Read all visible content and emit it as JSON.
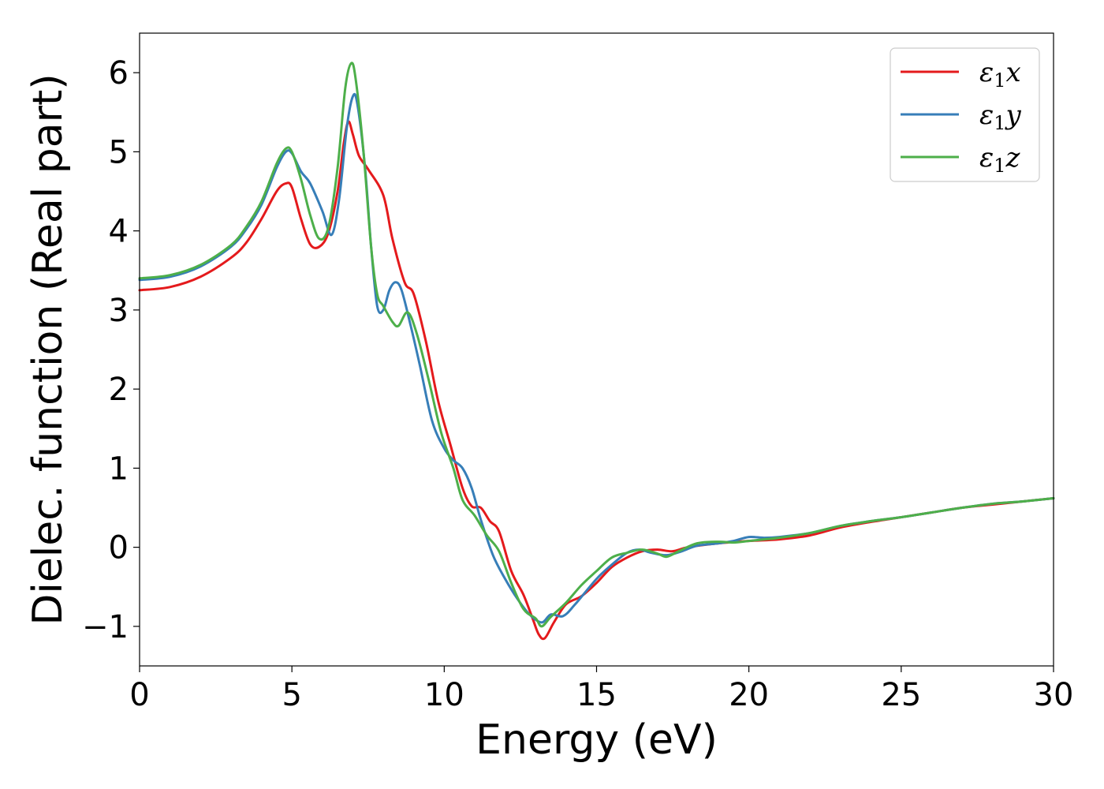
{
  "chart_data": {
    "type": "line",
    "title": "",
    "xlabel": "Energy (eV)",
    "ylabel": "Dielec. function (Real part)",
    "xlim": [
      0,
      30
    ],
    "ylim": [
      -1.5,
      6.5
    ],
    "xticks": [
      0,
      5,
      10,
      15,
      20,
      25,
      30
    ],
    "yticks": [
      -1,
      0,
      1,
      2,
      3,
      4,
      5,
      6
    ],
    "xtick_labels": [
      "0",
      "5",
      "10",
      "15",
      "20",
      "25",
      "30"
    ],
    "ytick_labels": [
      "−1",
      "0",
      "1",
      "2",
      "3",
      "4",
      "5",
      "6"
    ],
    "grid": false,
    "legend_position": "top-right",
    "series": [
      {
        "name_base": "ε",
        "name_sub": "1",
        "name_suffix": "x",
        "color": "#e41a1c",
        "points": [
          [
            0,
            3.25
          ],
          [
            1,
            3.29
          ],
          [
            2,
            3.42
          ],
          [
            3,
            3.66
          ],
          [
            3.5,
            3.85
          ],
          [
            4,
            4.15
          ],
          [
            4.5,
            4.5
          ],
          [
            4.8,
            4.6
          ],
          [
            5.0,
            4.55
          ],
          [
            5.3,
            4.15
          ],
          [
            5.6,
            3.83
          ],
          [
            5.9,
            3.8
          ],
          [
            6.2,
            3.98
          ],
          [
            6.5,
            4.5
          ],
          [
            6.7,
            5.1
          ],
          [
            6.85,
            5.38
          ],
          [
            7.0,
            5.22
          ],
          [
            7.2,
            4.95
          ],
          [
            7.5,
            4.78
          ],
          [
            8.0,
            4.45
          ],
          [
            8.3,
            3.9
          ],
          [
            8.7,
            3.35
          ],
          [
            9.0,
            3.2
          ],
          [
            9.4,
            2.6
          ],
          [
            9.8,
            1.85
          ],
          [
            10.2,
            1.3
          ],
          [
            10.6,
            0.75
          ],
          [
            10.9,
            0.52
          ],
          [
            11.2,
            0.5
          ],
          [
            11.5,
            0.33
          ],
          [
            11.8,
            0.2
          ],
          [
            12.2,
            -0.3
          ],
          [
            12.6,
            -0.6
          ],
          [
            12.9,
            -0.9
          ],
          [
            13.1,
            -1.1
          ],
          [
            13.3,
            -1.15
          ],
          [
            13.6,
            -0.95
          ],
          [
            14.0,
            -0.72
          ],
          [
            14.5,
            -0.62
          ],
          [
            15.0,
            -0.45
          ],
          [
            15.5,
            -0.25
          ],
          [
            16.0,
            -0.13
          ],
          [
            16.5,
            -0.05
          ],
          [
            17.0,
            -0.03
          ],
          [
            17.5,
            -0.05
          ],
          [
            18.0,
            0.0
          ],
          [
            19.0,
            0.05
          ],
          [
            20.0,
            0.08
          ],
          [
            21.0,
            0.1
          ],
          [
            22.0,
            0.15
          ],
          [
            23.0,
            0.25
          ],
          [
            24.0,
            0.32
          ],
          [
            25.0,
            0.38
          ],
          [
            26.0,
            0.44
          ],
          [
            27.0,
            0.5
          ],
          [
            28.0,
            0.54
          ],
          [
            29.0,
            0.58
          ],
          [
            30.0,
            0.62
          ]
        ]
      },
      {
        "name_base": "ε",
        "name_sub": "1",
        "name_suffix": "y",
        "color": "#377eb8",
        "points": [
          [
            0,
            3.38
          ],
          [
            1,
            3.42
          ],
          [
            2,
            3.55
          ],
          [
            3,
            3.8
          ],
          [
            3.5,
            4.02
          ],
          [
            4,
            4.33
          ],
          [
            4.5,
            4.8
          ],
          [
            4.8,
            5.0
          ],
          [
            5.0,
            4.98
          ],
          [
            5.3,
            4.75
          ],
          [
            5.6,
            4.6
          ],
          [
            6.0,
            4.25
          ],
          [
            6.3,
            3.95
          ],
          [
            6.55,
            4.4
          ],
          [
            6.8,
            5.3
          ],
          [
            7.0,
            5.7
          ],
          [
            7.15,
            5.6
          ],
          [
            7.4,
            4.8
          ],
          [
            7.6,
            3.8
          ],
          [
            7.8,
            3.05
          ],
          [
            8.0,
            3.0
          ],
          [
            8.2,
            3.25
          ],
          [
            8.4,
            3.35
          ],
          [
            8.6,
            3.25
          ],
          [
            8.9,
            2.8
          ],
          [
            9.2,
            2.3
          ],
          [
            9.6,
            1.6
          ],
          [
            10.0,
            1.25
          ],
          [
            10.3,
            1.1
          ],
          [
            10.6,
            1.0
          ],
          [
            10.9,
            0.75
          ],
          [
            11.2,
            0.35
          ],
          [
            11.6,
            -0.1
          ],
          [
            12.0,
            -0.4
          ],
          [
            12.4,
            -0.65
          ],
          [
            12.8,
            -0.85
          ],
          [
            13.2,
            -0.95
          ],
          [
            13.5,
            -0.85
          ],
          [
            13.9,
            -0.87
          ],
          [
            14.3,
            -0.72
          ],
          [
            15.0,
            -0.4
          ],
          [
            15.5,
            -0.22
          ],
          [
            16.0,
            -0.07
          ],
          [
            16.4,
            -0.03
          ],
          [
            16.8,
            -0.07
          ],
          [
            17.3,
            -0.1
          ],
          [
            17.8,
            -0.05
          ],
          [
            18.3,
            0.02
          ],
          [
            19.0,
            0.05
          ],
          [
            19.5,
            0.08
          ],
          [
            20.0,
            0.13
          ],
          [
            20.5,
            0.12
          ],
          [
            21.0,
            0.13
          ],
          [
            22.0,
            0.18
          ],
          [
            23.0,
            0.27
          ],
          [
            24.0,
            0.33
          ],
          [
            25.0,
            0.38
          ],
          [
            26.0,
            0.44
          ],
          [
            27.0,
            0.5
          ],
          [
            28.0,
            0.55
          ],
          [
            29.0,
            0.58
          ],
          [
            30.0,
            0.62
          ]
        ]
      },
      {
        "name_base": "ε",
        "name_sub": "1",
        "name_suffix": "z",
        "color": "#4daf4a",
        "points": [
          [
            0,
            3.4
          ],
          [
            1,
            3.44
          ],
          [
            2,
            3.57
          ],
          [
            3,
            3.82
          ],
          [
            3.5,
            4.05
          ],
          [
            4,
            4.37
          ],
          [
            4.5,
            4.85
          ],
          [
            4.8,
            5.04
          ],
          [
            5.0,
            5.0
          ],
          [
            5.3,
            4.65
          ],
          [
            5.6,
            4.2
          ],
          [
            5.9,
            3.9
          ],
          [
            6.2,
            4.05
          ],
          [
            6.5,
            4.8
          ],
          [
            6.75,
            5.8
          ],
          [
            6.95,
            6.12
          ],
          [
            7.1,
            5.9
          ],
          [
            7.35,
            5.0
          ],
          [
            7.6,
            3.8
          ],
          [
            7.8,
            3.2
          ],
          [
            8.0,
            3.05
          ],
          [
            8.3,
            2.85
          ],
          [
            8.5,
            2.8
          ],
          [
            8.8,
            2.97
          ],
          [
            9.1,
            2.7
          ],
          [
            9.5,
            2.1
          ],
          [
            9.9,
            1.45
          ],
          [
            10.3,
            1.0
          ],
          [
            10.6,
            0.6
          ],
          [
            11.0,
            0.4
          ],
          [
            11.4,
            0.15
          ],
          [
            11.8,
            -0.05
          ],
          [
            12.2,
            -0.45
          ],
          [
            12.6,
            -0.78
          ],
          [
            13.0,
            -0.9
          ],
          [
            13.2,
            -1.0
          ],
          [
            13.5,
            -0.88
          ],
          [
            14.0,
            -0.7
          ],
          [
            14.5,
            -0.48
          ],
          [
            15.0,
            -0.3
          ],
          [
            15.5,
            -0.13
          ],
          [
            16.0,
            -0.07
          ],
          [
            16.5,
            -0.03
          ],
          [
            17.0,
            -0.08
          ],
          [
            17.3,
            -0.12
          ],
          [
            17.7,
            -0.05
          ],
          [
            18.3,
            0.05
          ],
          [
            19.0,
            0.07
          ],
          [
            19.5,
            0.06
          ],
          [
            20.0,
            0.08
          ],
          [
            20.5,
            0.1
          ],
          [
            21.0,
            0.12
          ],
          [
            22.0,
            0.18
          ],
          [
            23.0,
            0.27
          ],
          [
            24.0,
            0.33
          ],
          [
            25.0,
            0.38
          ],
          [
            26.0,
            0.44
          ],
          [
            27.0,
            0.5
          ],
          [
            28.0,
            0.55
          ],
          [
            29.0,
            0.58
          ],
          [
            30.0,
            0.62
          ]
        ]
      }
    ]
  }
}
